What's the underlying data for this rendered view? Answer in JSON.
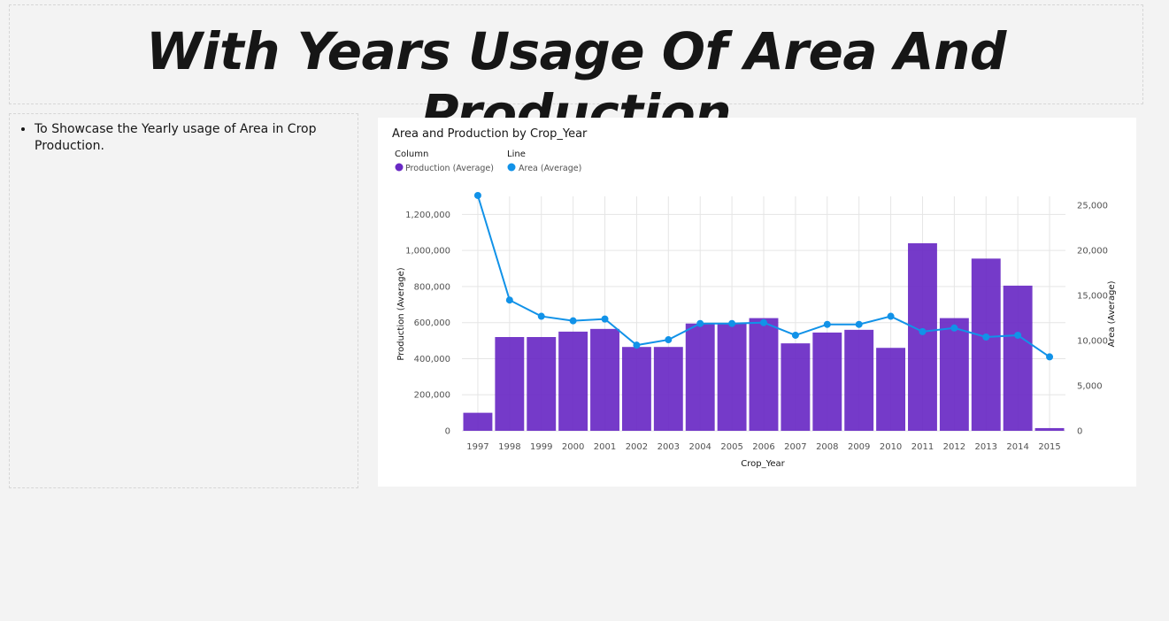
{
  "page": {
    "title": "With Years Usage Of Area And Production",
    "notes": [
      "To Showcase the Yearly usage of Area in Crop Production."
    ]
  },
  "colors": {
    "bar": "#6929c4",
    "line": "#1192e8",
    "grid": "#e5e5e5"
  },
  "chart_data": {
    "type": "bar",
    "combo": "bar-line",
    "title": "Area and Production by Crop_Year",
    "xlabel": "Crop_Year",
    "ylabel": "Production (Average)",
    "y2label": "Area (Average)",
    "legend": {
      "placement": "top-left",
      "groups": [
        {
          "heading": "Column",
          "label": "Production (Average)"
        },
        {
          "heading": "Line",
          "label": "Area (Average)"
        }
      ]
    },
    "categories": [
      "1997",
      "1998",
      "1999",
      "2000",
      "2001",
      "2002",
      "2003",
      "2004",
      "2005",
      "2006",
      "2007",
      "2008",
      "2009",
      "2010",
      "2011",
      "2012",
      "2013",
      "2014",
      "2015"
    ],
    "series": [
      {
        "name": "Production (Average)",
        "type": "bar",
        "axis": "left",
        "values": [
          100000,
          520000,
          520000,
          550000,
          565000,
          465000,
          465000,
          595000,
          595000,
          625000,
          485000,
          545000,
          560000,
          460000,
          1040000,
          625000,
          955000,
          805000,
          15000
        ]
      },
      {
        "name": "Area (Average)",
        "type": "line",
        "axis": "right",
        "values": [
          26100,
          14500,
          12700,
          12200,
          12400,
          9500,
          10100,
          11900,
          11900,
          12000,
          10600,
          11800,
          11800,
          12700,
          11000,
          11400,
          10400,
          10600,
          8200
        ]
      }
    ],
    "ylim": [
      0,
      1300000
    ],
    "yticks": [
      0,
      200000,
      400000,
      600000,
      800000,
      1000000,
      1200000
    ],
    "ytick_labels": [
      "0",
      "200,000",
      "400,000",
      "600,000",
      "800,000",
      "1,000,000",
      "1,200,000"
    ],
    "y2lim": [
      0,
      26000
    ],
    "y2ticks": [
      0,
      5000,
      10000,
      15000,
      20000,
      25000
    ],
    "y2tick_labels": [
      "0",
      "5,000",
      "10,000",
      "15,000",
      "20,000",
      "25,000"
    ],
    "grid": true
  }
}
